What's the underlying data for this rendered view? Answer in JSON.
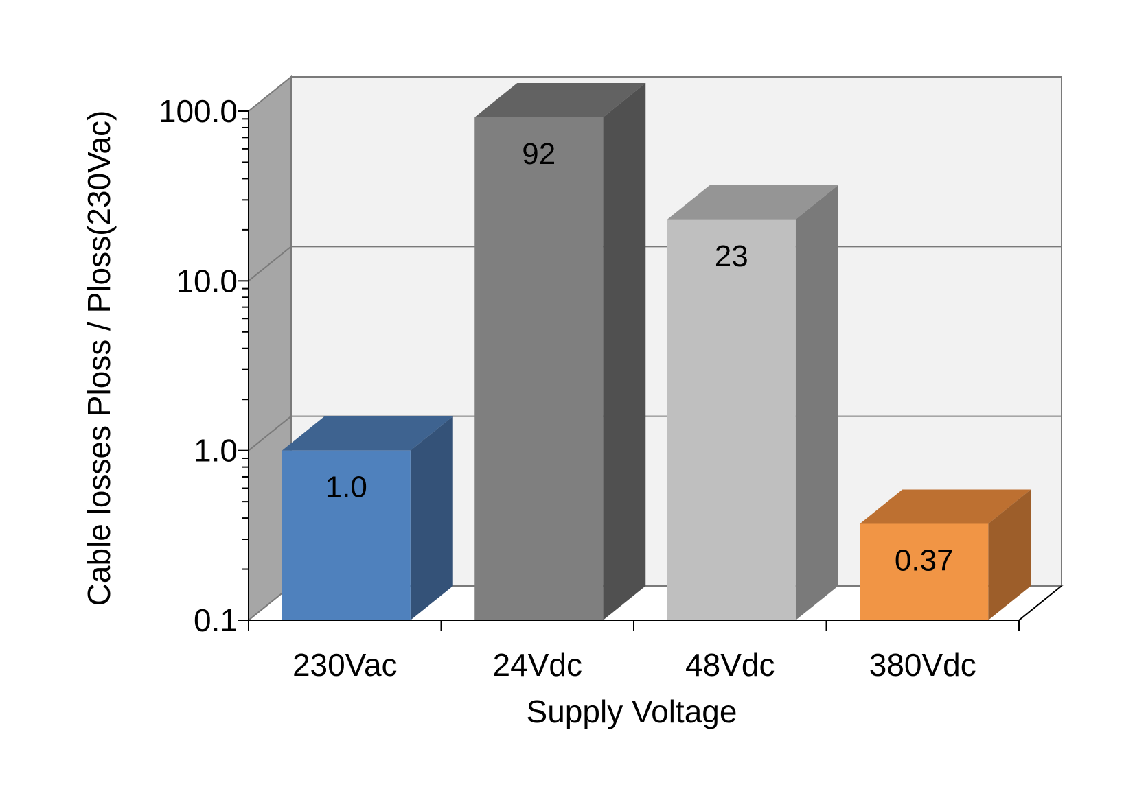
{
  "chart_data": {
    "type": "bar",
    "title": "",
    "xlabel": "Supply Voltage",
    "ylabel": "Cable losses Ploss / Ploss(230Vac)",
    "y_scale": "log",
    "ylim": [
      0.1,
      100
    ],
    "y_ticks": [
      {
        "value": 0.1,
        "label": "0.1"
      },
      {
        "value": 1,
        "label": "1.0"
      },
      {
        "value": 10,
        "label": "10.0"
      },
      {
        "value": 100,
        "label": "100.0"
      }
    ],
    "categories": [
      "230Vac",
      "24Vdc",
      "48Vdc",
      "380Vdc"
    ],
    "values": [
      1.0,
      92,
      23,
      0.37
    ],
    "data_labels": [
      "1.0",
      "92",
      "23",
      "0.37"
    ],
    "colors": [
      {
        "front": "#4f81bd",
        "side": "#345278",
        "top": "#3e6390"
      },
      {
        "front": "#7f7f7f",
        "side": "#505050",
        "top": "#626262"
      },
      {
        "front": "#bfbfbf",
        "side": "#7a7a7a",
        "top": "#959595"
      },
      {
        "front": "#f19545",
        "side": "#9d5e2a",
        "top": "#bd7031"
      }
    ],
    "grid": true,
    "style": "3d",
    "legend": "none"
  }
}
